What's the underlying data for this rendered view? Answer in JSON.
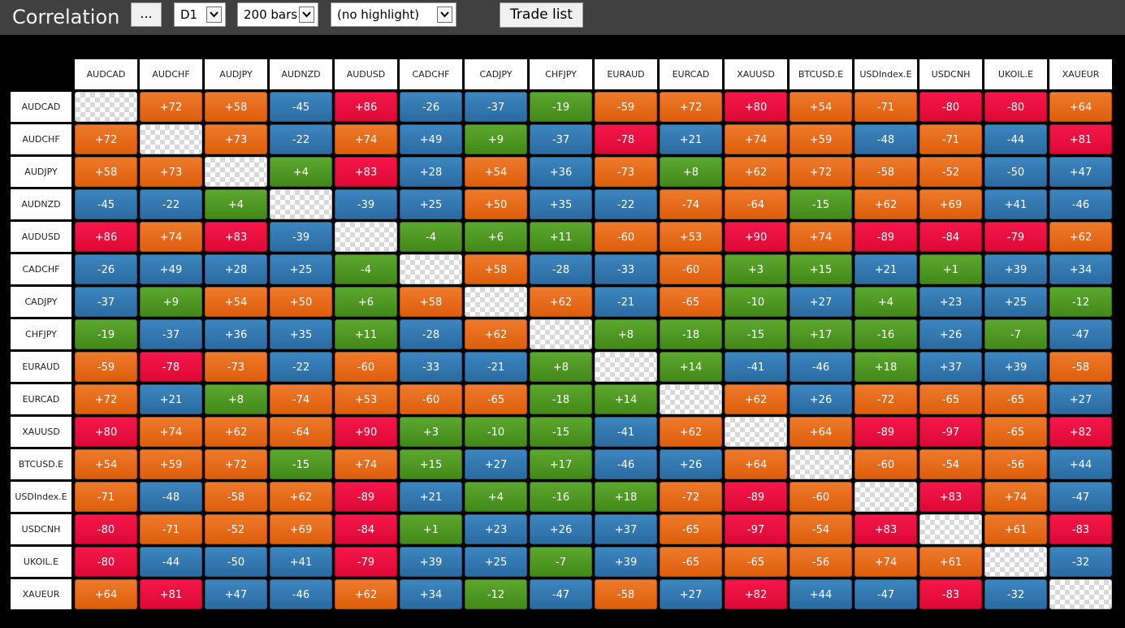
{
  "app": {
    "title": "Correlation"
  },
  "toolbar": {
    "more_label": "...",
    "timeframe": "D1",
    "bars": "200 bars",
    "highlight": "(no highlight)",
    "trade_list_label": "Trade list"
  },
  "colors": {
    "orange": "#e56a1a",
    "blue": "#3278b0",
    "green": "#4f9a24",
    "red": "#ee1042",
    "diagonal": "checkerboard"
  },
  "symbols": [
    "AUDCAD",
    "AUDCHF",
    "AUDJPY",
    "AUDNZD",
    "AUDUSD",
    "CADCHF",
    "CADJPY",
    "CHFJPY",
    "EURAUD",
    "EURCAD",
    "XAUUSD",
    "BTCUSD.E",
    "USDIndex.E",
    "USDCNH",
    "UKOIL.E",
    "XAUEUR"
  ],
  "matrix": [
    [
      "",
      "+72",
      "+58",
      "-45",
      "+86",
      "-26",
      "-37",
      "-19",
      "-59",
      "+72",
      "+80",
      "+54",
      "-71",
      "-80",
      "-80",
      "+64"
    ],
    [
      "+72",
      "",
      "+73",
      "-22",
      "+74",
      "+49",
      "+9",
      "-37",
      "-78",
      "+21",
      "+74",
      "+59",
      "-48",
      "-71",
      "-44",
      "+81"
    ],
    [
      "+58",
      "+73",
      "",
      "+4",
      "+83",
      "+28",
      "+54",
      "+36",
      "-73",
      "+8",
      "+62",
      "+72",
      "-58",
      "-52",
      "-50",
      "+47"
    ],
    [
      "-45",
      "-22",
      "+4",
      "",
      "-39",
      "+25",
      "+50",
      "+35",
      "-22",
      "-74",
      "-64",
      "-15",
      "+62",
      "+69",
      "+41",
      "-46"
    ],
    [
      "+86",
      "+74",
      "+83",
      "-39",
      "",
      "-4",
      "+6",
      "+11",
      "-60",
      "+53",
      "+90",
      "+74",
      "-89",
      "-84",
      "-79",
      "+62"
    ],
    [
      "-26",
      "+49",
      "+28",
      "+25",
      "-4",
      "",
      "+58",
      "-28",
      "-33",
      "-60",
      "+3",
      "+15",
      "+21",
      "+1",
      "+39",
      "+34"
    ],
    [
      "-37",
      "+9",
      "+54",
      "+50",
      "+6",
      "+58",
      "",
      "+62",
      "-21",
      "-65",
      "-10",
      "+27",
      "+4",
      "+23",
      "+25",
      "-12"
    ],
    [
      "-19",
      "-37",
      "+36",
      "+35",
      "+11",
      "-28",
      "+62",
      "",
      "+8",
      "-18",
      "-15",
      "+17",
      "-16",
      "+26",
      "-7",
      "-47"
    ],
    [
      "-59",
      "-78",
      "-73",
      "-22",
      "-60",
      "-33",
      "-21",
      "+8",
      "",
      "+14",
      "-41",
      "-46",
      "+18",
      "+37",
      "+39",
      "-58"
    ],
    [
      "+72",
      "+21",
      "+8",
      "-74",
      "+53",
      "-60",
      "-65",
      "-18",
      "+14",
      "",
      "+62",
      "+26",
      "-72",
      "-65",
      "-65",
      "+27"
    ],
    [
      "+80",
      "+74",
      "+62",
      "-64",
      "+90",
      "+3",
      "-10",
      "-15",
      "-41",
      "+62",
      "",
      "+64",
      "-89",
      "-97",
      "-65",
      "+82"
    ],
    [
      "+54",
      "+59",
      "+72",
      "-15",
      "+74",
      "+15",
      "+27",
      "+17",
      "-46",
      "+26",
      "+64",
      "",
      "-60",
      "-54",
      "-56",
      "+44"
    ],
    [
      "-71",
      "-48",
      "-58",
      "+62",
      "-89",
      "+21",
      "+4",
      "-16",
      "+18",
      "-72",
      "-89",
      "-60",
      "",
      "+83",
      "+74",
      "-47"
    ],
    [
      "-80",
      "-71",
      "-52",
      "+69",
      "-84",
      "+1",
      "+23",
      "+26",
      "+37",
      "-65",
      "-97",
      "-54",
      "+83",
      "",
      "+61",
      "-83"
    ],
    [
      "-80",
      "-44",
      "-50",
      "+41",
      "-79",
      "+39",
      "+25",
      "-7",
      "+39",
      "-65",
      "-65",
      "-56",
      "+74",
      "+61",
      "",
      "-32"
    ],
    [
      "+64",
      "+81",
      "+47",
      "-46",
      "+62",
      "+34",
      "-12",
      "-47",
      "-58",
      "+27",
      "+82",
      "+44",
      "-47",
      "-83",
      "-32",
      ""
    ]
  ],
  "cell_colors": [
    [
      "d",
      "o",
      "o",
      "b",
      "r",
      "b",
      "b",
      "g",
      "o",
      "o",
      "r",
      "o",
      "o",
      "r",
      "r",
      "o"
    ],
    [
      "o",
      "d",
      "o",
      "b",
      "o",
      "b",
      "g",
      "b",
      "r",
      "b",
      "o",
      "o",
      "b",
      "o",
      "b",
      "r"
    ],
    [
      "o",
      "o",
      "d",
      "g",
      "r",
      "b",
      "o",
      "b",
      "o",
      "g",
      "o",
      "o",
      "o",
      "o",
      "b",
      "b"
    ],
    [
      "b",
      "b",
      "g",
      "d",
      "b",
      "b",
      "o",
      "b",
      "b",
      "o",
      "o",
      "g",
      "o",
      "o",
      "b",
      "b"
    ],
    [
      "r",
      "o",
      "r",
      "b",
      "d",
      "g",
      "g",
      "g",
      "o",
      "o",
      "r",
      "o",
      "r",
      "r",
      "r",
      "o"
    ],
    [
      "b",
      "b",
      "b",
      "b",
      "g",
      "d",
      "o",
      "b",
      "b",
      "o",
      "g",
      "g",
      "b",
      "g",
      "b",
      "b"
    ],
    [
      "b",
      "g",
      "o",
      "o",
      "g",
      "o",
      "d",
      "o",
      "b",
      "o",
      "g",
      "b",
      "g",
      "b",
      "b",
      "g"
    ],
    [
      "g",
      "b",
      "b",
      "b",
      "g",
      "b",
      "o",
      "d",
      "g",
      "g",
      "g",
      "g",
      "g",
      "b",
      "g",
      "b"
    ],
    [
      "o",
      "r",
      "o",
      "b",
      "o",
      "b",
      "b",
      "g",
      "d",
      "g",
      "b",
      "b",
      "g",
      "b",
      "b",
      "o"
    ],
    [
      "o",
      "b",
      "g",
      "o",
      "o",
      "o",
      "o",
      "g",
      "g",
      "d",
      "o",
      "b",
      "o",
      "o",
      "o",
      "b"
    ],
    [
      "r",
      "o",
      "o",
      "o",
      "r",
      "g",
      "g",
      "g",
      "b",
      "o",
      "d",
      "o",
      "r",
      "r",
      "o",
      "r"
    ],
    [
      "o",
      "o",
      "o",
      "g",
      "o",
      "g",
      "b",
      "g",
      "b",
      "b",
      "o",
      "d",
      "o",
      "o",
      "o",
      "b"
    ],
    [
      "o",
      "b",
      "o",
      "o",
      "r",
      "b",
      "g",
      "g",
      "g",
      "o",
      "r",
      "o",
      "d",
      "r",
      "o",
      "b"
    ],
    [
      "r",
      "o",
      "o",
      "o",
      "r",
      "g",
      "b",
      "b",
      "b",
      "o",
      "r",
      "o",
      "r",
      "d",
      "o",
      "r"
    ],
    [
      "r",
      "b",
      "b",
      "b",
      "r",
      "b",
      "b",
      "g",
      "b",
      "o",
      "o",
      "o",
      "o",
      "o",
      "d",
      "b"
    ],
    [
      "o",
      "r",
      "b",
      "b",
      "o",
      "b",
      "g",
      "b",
      "o",
      "b",
      "r",
      "b",
      "b",
      "r",
      "b",
      "d"
    ]
  ]
}
